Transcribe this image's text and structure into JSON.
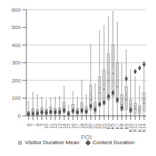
{
  "chart_data": {
    "type": "box",
    "title": "",
    "xlabel": "POI",
    "ylabel": "",
    "categories": [
      "6",
      "7",
      "8",
      "9",
      "10",
      "11",
      "12",
      "13",
      "14",
      "15",
      "16",
      "17",
      "18",
      "19",
      "20",
      "21",
      "22",
      "23",
      "K0",
      "K5",
      "K7",
      "K8",
      "K9",
      "K10",
      "K11",
      "K12",
      "K14"
    ],
    "q1": [
      5,
      8,
      6,
      10,
      8,
      12,
      10,
      11,
      18,
      6,
      15,
      10,
      15,
      12,
      35,
      15,
      55,
      65,
      90,
      110,
      75,
      28,
      35,
      18,
      15,
      12,
      28
    ],
    "median": [
      12,
      18,
      15,
      22,
      18,
      25,
      20,
      22,
      38,
      13,
      32,
      20,
      38,
      26,
      90,
      38,
      130,
      150,
      200,
      240,
      165,
      65,
      90,
      46,
      38,
      28,
      70
    ],
    "q3": [
      25,
      40,
      35,
      45,
      38,
      50,
      42,
      44,
      75,
      26,
      65,
      42,
      75,
      52,
      170,
      75,
      220,
      260,
      350,
      400,
      300,
      120,
      165,
      90,
      72,
      55,
      130
    ],
    "whislo": [
      0,
      0,
      0,
      0,
      0,
      0,
      0,
      0,
      0,
      0,
      0,
      0,
      0,
      0,
      0,
      0,
      0,
      0,
      0,
      0,
      0,
      0,
      0,
      0,
      0,
      0,
      0
    ],
    "whishi": [
      80,
      130,
      120,
      105,
      90,
      100,
      105,
      110,
      165,
      60,
      135,
      105,
      200,
      120,
      400,
      180,
      480,
      510,
      560,
      590,
      530,
      295,
      370,
      260,
      220,
      165,
      310
    ],
    "color": "#888888",
    "series": [
      {
        "name": "Visitior Duration Mean",
        "color": "#bbbbbb",
        "marker": "square",
        "values": [
          18,
          28,
          22,
          30,
          26,
          34,
          29,
          31,
          52,
          18,
          44,
          29,
          54,
          36,
          118,
          52,
          155,
          175,
          245,
          290,
          200,
          86,
          118,
          62,
          52,
          38,
          90
        ]
      },
      {
        "name": "Content Duration",
        "color": "#555555",
        "marker": "diamond",
        "values": [
          10,
          12,
          14,
          20,
          18,
          22,
          20,
          21,
          30,
          12,
          28,
          20,
          30,
          24,
          55,
          35,
          65,
          75,
          110,
          130,
          90,
          45,
          210,
          32,
          250,
          270,
          290
        ]
      }
    ],
    "ylim": [
      0,
      600
    ],
    "yticks": [
      0,
      100,
      200,
      300,
      400,
      500,
      600
    ],
    "grid": true,
    "legend": "bottom"
  }
}
